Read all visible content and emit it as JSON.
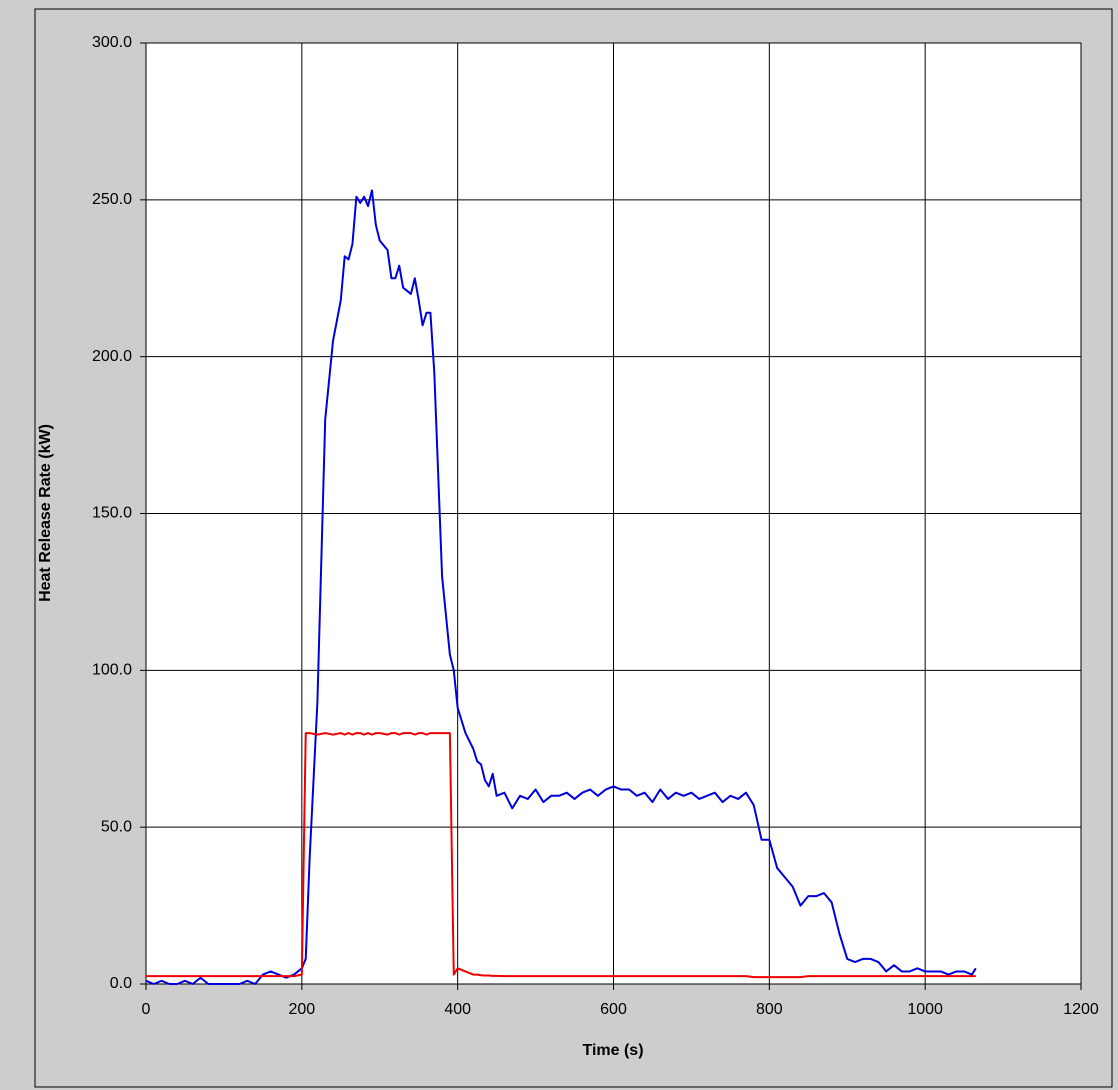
{
  "chart_data": {
    "type": "line",
    "xlabel": "Time (s)",
    "ylabel": "Heat Release Rate (kW)",
    "xlim": [
      0,
      1200
    ],
    "xticks": [
      0,
      200,
      400,
      600,
      800,
      1000,
      1200
    ],
    "ylim": [
      0,
      300
    ],
    "yticks": [
      {
        "value": 0,
        "label": "0.0"
      },
      {
        "value": 50,
        "label": "50.0"
      },
      {
        "value": 100,
        "label": "100.0"
      },
      {
        "value": 150,
        "label": "150.0"
      },
      {
        "value": 200,
        "label": "200.0"
      },
      {
        "value": 250,
        "label": "250.0"
      },
      {
        "value": 300,
        "label": "300.0"
      }
    ],
    "grid": true,
    "x": [
      0,
      10,
      20,
      30,
      40,
      50,
      60,
      70,
      80,
      90,
      100,
      110,
      120,
      130,
      140,
      150,
      160,
      170,
      180,
      190,
      200,
      205,
      210,
      220,
      230,
      240,
      250,
      255,
      260,
      265,
      270,
      275,
      280,
      285,
      290,
      295,
      300,
      310,
      315,
      320,
      325,
      330,
      340,
      345,
      350,
      355,
      360,
      365,
      370,
      380,
      390,
      395,
      400,
      410,
      420,
      425,
      430,
      435,
      440,
      445,
      450,
      460,
      470,
      480,
      490,
      500,
      510,
      520,
      530,
      540,
      550,
      560,
      570,
      580,
      590,
      600,
      610,
      620,
      630,
      640,
      650,
      660,
      670,
      680,
      690,
      700,
      710,
      720,
      730,
      740,
      750,
      760,
      770,
      780,
      790,
      800,
      810,
      820,
      830,
      840,
      850,
      860,
      870,
      880,
      890,
      900,
      910,
      920,
      930,
      940,
      950,
      960,
      970,
      980,
      990,
      1000,
      1010,
      1020,
      1030,
      1040,
      1050,
      1060,
      1065
    ],
    "series": [
      {
        "color": "#0000dd",
        "values": [
          1,
          0,
          1,
          0,
          0,
          1,
          0,
          2,
          0,
          0,
          0,
          0,
          0,
          1,
          0,
          3,
          4,
          3,
          2,
          3,
          5,
          8,
          40,
          90,
          180,
          205,
          218,
          232,
          231,
          236,
          251,
          249,
          251,
          248,
          253,
          242,
          237,
          234,
          225,
          225,
          229,
          222,
          220,
          225,
          218,
          210,
          214,
          214,
          195,
          130,
          105,
          100,
          88,
          80,
          75,
          71,
          70,
          65,
          63,
          67,
          60,
          61,
          56,
          60,
          59,
          62,
          58,
          60,
          60,
          61,
          59,
          61,
          62,
          60,
          62,
          63,
          62,
          62,
          60,
          61,
          58,
          62,
          59,
          61,
          60,
          61,
          59,
          60,
          61,
          58,
          60,
          59,
          61,
          57,
          46,
          46,
          37,
          34,
          31,
          25,
          28,
          28,
          29,
          26,
          16,
          8,
          7,
          8,
          8,
          7,
          4,
          6,
          4,
          4,
          5,
          4,
          4,
          4,
          3,
          4,
          4,
          3,
          5
        ]
      },
      {
        "color": "#ee0000",
        "values": [
          2.5,
          2.5,
          2.5,
          2.5,
          2.5,
          2.5,
          2.5,
          2.5,
          2.5,
          2.5,
          2.5,
          2.5,
          2.5,
          2.5,
          2.5,
          2.5,
          2.5,
          2.5,
          2.5,
          2.5,
          3,
          80,
          80,
          79.5,
          80,
          79.5,
          80,
          79.5,
          80,
          79.5,
          80,
          80,
          79.5,
          80,
          79.5,
          80,
          80,
          79.5,
          80,
          80,
          79.5,
          80,
          80,
          79.5,
          80,
          80,
          79.5,
          80,
          80,
          80,
          80,
          3,
          5,
          4,
          3,
          3,
          2.8,
          2.7,
          2.7,
          2.6,
          2.6,
          2.5,
          2.5,
          2.5,
          2.5,
          2.5,
          2.5,
          2.5,
          2.5,
          2.5,
          2.5,
          2.5,
          2.5,
          2.5,
          2.5,
          2.5,
          2.5,
          2.5,
          2.5,
          2.5,
          2.5,
          2.5,
          2.5,
          2.5,
          2.5,
          2.5,
          2.5,
          2.5,
          2.5,
          2.5,
          2.5,
          2.5,
          2.5,
          2.2,
          2.2,
          2.2,
          2.2,
          2.2,
          2.2,
          2.2,
          2.5,
          2.5,
          2.5,
          2.5,
          2.5,
          2.5,
          2.5,
          2.5,
          2.5,
          2.5,
          2.5,
          2.5,
          2.5,
          2.5,
          2.5,
          2.5,
          2.5,
          2.5,
          2.5,
          2.5,
          2.5,
          2.5,
          2.5
        ]
      }
    ]
  }
}
